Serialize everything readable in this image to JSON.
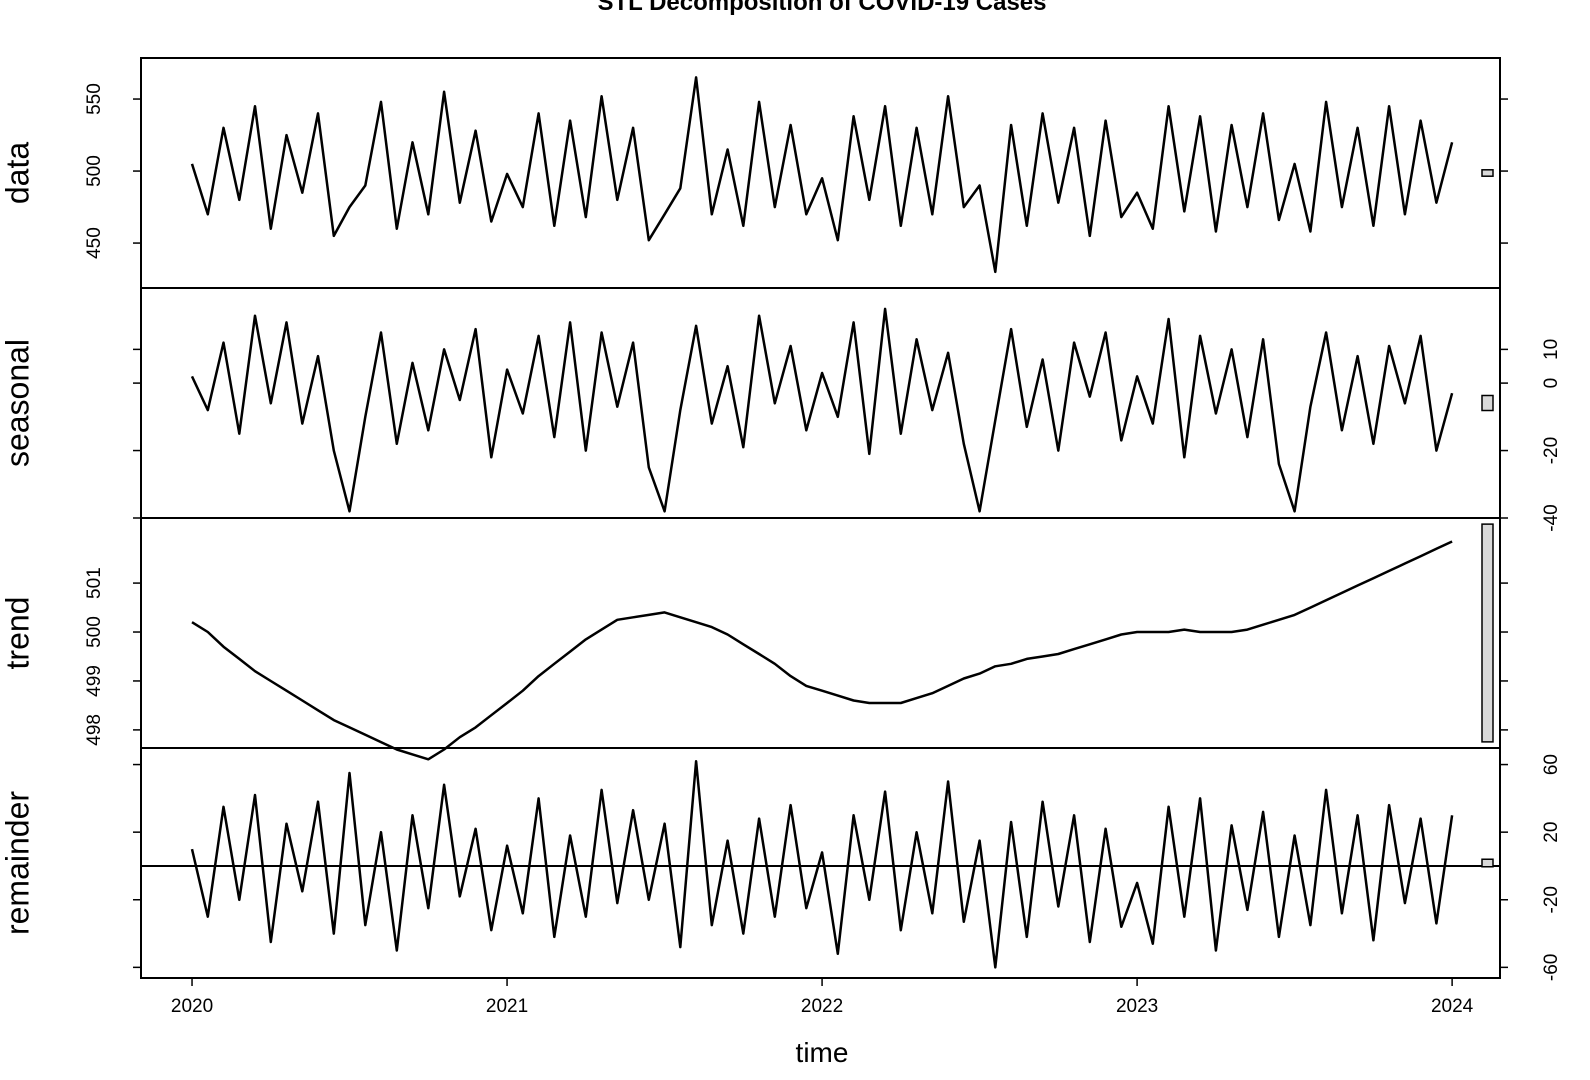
{
  "chart_data": {
    "type": "stl",
    "title": "STL Decomposition of COVID-19 Cases",
    "xlabel": "time",
    "xlim": [
      2019.838,
      2024.152
    ],
    "xticks": [
      2020,
      2021,
      2022,
      2023,
      2024
    ],
    "x": [
      2020,
      2020.05,
      2020.1,
      2020.15,
      2020.2,
      2020.25,
      2020.3,
      2020.35,
      2020.4,
      2020.45,
      2020.5,
      2020.55,
      2020.6,
      2020.65,
      2020.7,
      2020.75,
      2020.8,
      2020.85,
      2020.9,
      2020.95,
      2021,
      2021.05,
      2021.1,
      2021.15,
      2021.2,
      2021.25,
      2021.3,
      2021.35,
      2021.4,
      2021.45,
      2021.5,
      2021.55,
      2021.6,
      2021.65,
      2021.7,
      2021.75,
      2021.8,
      2021.85,
      2021.9,
      2021.95,
      2022,
      2022.05,
      2022.1,
      2022.15,
      2022.2,
      2022.25,
      2022.3,
      2022.35,
      2022.4,
      2022.45,
      2022.5,
      2022.55,
      2022.6,
      2022.65,
      2022.7,
      2022.75,
      2022.8,
      2022.85,
      2022.9,
      2022.95,
      2023,
      2023.05,
      2023.1,
      2023.15,
      2023.2,
      2023.25,
      2023.3,
      2023.35,
      2023.4,
      2023.45,
      2023.5,
      2023.55,
      2023.6,
      2023.65,
      2023.7,
      2023.75,
      2023.8,
      2023.85,
      2023.9,
      2023.95,
      2024
    ],
    "series": [
      {
        "name": "data",
        "color": "#000000",
        "axis_side": "left",
        "ylim": [
          418.8,
          578.5
        ],
        "yticks": [
          450,
          500,
          550
        ],
        "values": [
          505,
          470,
          530,
          480,
          545,
          460,
          525,
          485,
          540,
          455,
          475,
          490,
          548,
          460,
          520,
          470,
          555,
          478,
          528,
          465,
          498,
          475,
          540,
          462,
          535,
          468,
          552,
          480,
          530,
          452,
          470,
          488,
          565,
          470,
          515,
          462,
          548,
          475,
          532,
          470,
          495,
          452,
          538,
          480,
          545,
          462,
          530,
          470,
          552,
          475,
          490,
          430,
          532,
          462,
          540,
          478,
          530,
          455,
          535,
          468,
          485,
          460,
          545,
          472,
          538,
          458,
          532,
          475,
          540,
          466,
          505,
          458,
          548,
          475,
          530,
          462,
          545,
          470,
          535,
          478,
          520
        ]
      },
      {
        "name": "seasonal",
        "color": "#000000",
        "axis_side": "right",
        "ylim": [
          -40,
          28.2
        ],
        "yticks": [
          -40,
          -20,
          0,
          10
        ],
        "values": [
          2,
          -8,
          12,
          -15,
          20,
          -6,
          18,
          -12,
          8,
          -20,
          -38,
          -10,
          15,
          -18,
          6,
          -14,
          10,
          -5,
          16,
          -22,
          4,
          -9,
          14,
          -16,
          18,
          -20,
          15,
          -7,
          12,
          -25,
          -38,
          -8,
          17,
          -12,
          5,
          -19,
          20,
          -6,
          11,
          -14,
          3,
          -10,
          18,
          -21,
          22,
          -15,
          13,
          -8,
          9,
          -18,
          -38,
          -11,
          16,
          -13,
          7,
          -20,
          12,
          -4,
          15,
          -17,
          2,
          -12,
          19,
          -22,
          14,
          -9,
          10,
          -16,
          13,
          -24,
          -38,
          -7,
          15,
          -14,
          8,
          -18,
          11,
          -6,
          14,
          -20,
          -3
        ]
      },
      {
        "name": "trend",
        "color": "#000000",
        "axis_side": "left",
        "ylim": [
          497.63,
          502.33
        ],
        "yticks": [
          498,
          499,
          500,
          501
        ],
        "values": [
          500.2,
          500.0,
          499.7,
          499.45,
          499.2,
          499.0,
          498.8,
          498.6,
          498.4,
          498.2,
          498.05,
          497.9,
          497.75,
          497.6,
          497.5,
          497.4,
          497.6,
          497.85,
          498.05,
          498.3,
          498.55,
          498.8,
          499.1,
          499.35,
          499.6,
          499.85,
          500.05,
          500.25,
          500.3,
          500.35,
          500.4,
          500.3,
          500.2,
          500.1,
          499.95,
          499.75,
          499.55,
          499.35,
          499.1,
          498.9,
          498.8,
          498.7,
          498.6,
          498.55,
          498.55,
          498.55,
          498.65,
          498.75,
          498.9,
          499.05,
          499.15,
          499.3,
          499.35,
          499.45,
          499.5,
          499.55,
          499.65,
          499.75,
          499.85,
          499.95,
          500.0,
          500.0,
          500.0,
          500.05,
          500.0,
          500.0,
          500.0,
          500.05,
          500.15,
          500.25,
          500.35,
          500.5,
          500.65,
          500.8,
          500.95,
          501.1,
          501.25,
          501.4,
          501.55,
          501.7,
          501.85
        ]
      },
      {
        "name": "remainder",
        "color": "#000000",
        "axis_side": "right",
        "zero_line": true,
        "ylim": [
          -66.3,
          69.8
        ],
        "yticks": [
          -60,
          -20,
          20,
          60
        ],
        "values": [
          10,
          -30,
          35,
          -20,
          42,
          -45,
          25,
          -15,
          38,
          -40,
          55,
          -35,
          20,
          -50,
          30,
          -25,
          48,
          -18,
          22,
          -38,
          12,
          -28,
          40,
          -42,
          18,
          -30,
          45,
          -22,
          33,
          -20,
          25,
          -48,
          62,
          -35,
          15,
          -40,
          28,
          -30,
          36,
          -25,
          8,
          -52,
          30,
          -20,
          44,
          -38,
          20,
          -28,
          50,
          -33,
          15,
          -60,
          26,
          -42,
          38,
          -24,
          30,
          -45,
          22,
          -36,
          -10,
          -46,
          35,
          -30,
          40,
          -50,
          24,
          -26,
          32,
          -42,
          18,
          -35,
          45,
          -28,
          30,
          -44,
          36,
          -22,
          28,
          -34,
          30
        ]
      }
    ]
  }
}
